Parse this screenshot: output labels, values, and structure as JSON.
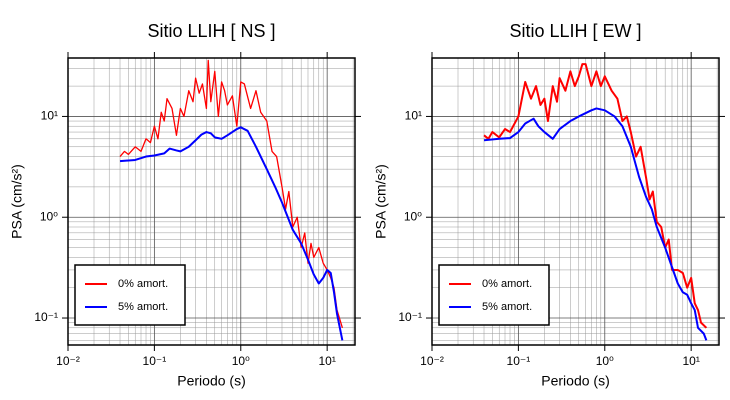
{
  "chart_data": [
    {
      "type": "line",
      "title": "Sitio LLIH [ NS ]",
      "xlabel": "Periodo (s)",
      "ylabel": "PSA (cm/s²)",
      "xlog": true,
      "ylog": true,
      "grid": true,
      "legend": "lower left",
      "xlim": [
        0.01,
        21
      ],
      "ylim": [
        0.054,
        38
      ],
      "xticks": [
        {
          "value": 0.01,
          "label": "10⁻²"
        },
        {
          "value": 0.1,
          "label": "10⁻¹"
        },
        {
          "value": 1,
          "label": "10⁰"
        },
        {
          "value": 10,
          "label": "10¹"
        }
      ],
      "yticks": [
        {
          "value": 0.1,
          "label": "10⁻¹"
        },
        {
          "value": 1,
          "label": "10⁰"
        },
        {
          "value": 10,
          "label": "10¹"
        }
      ],
      "series": [
        {
          "name": "0% amort.",
          "color": "#ff0000",
          "x": [
            0.04,
            0.045,
            0.05,
            0.06,
            0.07,
            0.08,
            0.09,
            0.1,
            0.11,
            0.12,
            0.13,
            0.14,
            0.16,
            0.18,
            0.2,
            0.22,
            0.25,
            0.28,
            0.3,
            0.33,
            0.36,
            0.4,
            0.42,
            0.45,
            0.5,
            0.55,
            0.6,
            0.65,
            0.7,
            0.8,
            0.9,
            1.0,
            1.1,
            1.3,
            1.5,
            1.7,
            2.0,
            2.3,
            2.6,
            3.0,
            3.3,
            3.6,
            4.0,
            4.5,
            5.0,
            5.5,
            6.0,
            6.5,
            7,
            8,
            9,
            10,
            11,
            12,
            13,
            15
          ],
          "values": [
            4.0,
            4.5,
            4.2,
            5.0,
            4.5,
            6.0,
            5.5,
            8.0,
            6.0,
            11,
            9,
            15,
            12,
            6.5,
            12,
            10,
            18,
            14,
            24,
            17,
            21,
            12,
            36,
            14,
            28,
            10,
            22,
            18,
            13,
            16,
            8,
            22,
            21,
            12,
            18,
            11,
            9,
            4.5,
            4.0,
            2.0,
            1.2,
            1.8,
            0.8,
            1.0,
            0.5,
            0.7,
            0.35,
            0.55,
            0.4,
            0.5,
            0.35,
            0.3,
            0.25,
            0.2,
            0.12,
            0.08
          ]
        },
        {
          "name": "5% amort.",
          "color": "#0000ff",
          "x": [
            0.04,
            0.06,
            0.08,
            0.1,
            0.13,
            0.15,
            0.18,
            0.2,
            0.25,
            0.3,
            0.35,
            0.4,
            0.45,
            0.5,
            0.6,
            0.7,
            0.9,
            1.0,
            1.2,
            1.5,
            2.0,
            2.5,
            3.0,
            4.0,
            5.0,
            6.0,
            7.0,
            8.0,
            9.0,
            10,
            11,
            12,
            13,
            15
          ],
          "values": [
            3.6,
            3.7,
            4.0,
            4.1,
            4.3,
            4.8,
            4.6,
            4.5,
            5.0,
            5.8,
            6.6,
            7.0,
            6.8,
            6.2,
            6.0,
            6.5,
            7.5,
            7.8,
            7.2,
            5.0,
            3.0,
            2.0,
            1.4,
            0.75,
            0.55,
            0.38,
            0.27,
            0.22,
            0.25,
            0.3,
            0.28,
            0.18,
            0.11,
            0.06
          ]
        }
      ]
    },
    {
      "type": "line",
      "title": "Sitio LLIH [ EW ]",
      "xlabel": "Periodo (s)",
      "ylabel": "PSA (cm/s²)",
      "xlog": true,
      "ylog": true,
      "grid": true,
      "legend": "lower left",
      "xlim": [
        0.01,
        21
      ],
      "ylim": [
        0.054,
        38
      ],
      "xticks": [
        {
          "value": 0.01,
          "label": "10⁻²"
        },
        {
          "value": 0.1,
          "label": "10⁻¹"
        },
        {
          "value": 1,
          "label": "10⁰"
        },
        {
          "value": 10,
          "label": "10¹"
        }
      ],
      "yticks": [
        {
          "value": 0.1,
          "label": "10⁻¹"
        },
        {
          "value": 1,
          "label": "10⁰"
        },
        {
          "value": 10,
          "label": "10¹"
        }
      ],
      "series": [
        {
          "name": "0% amort.",
          "color": "#ff0000",
          "x": [
            0.04,
            0.045,
            0.05,
            0.06,
            0.07,
            0.08,
            0.1,
            0.12,
            0.14,
            0.16,
            0.18,
            0.2,
            0.22,
            0.25,
            0.28,
            0.3,
            0.35,
            0.4,
            0.45,
            0.5,
            0.55,
            0.6,
            0.7,
            0.8,
            0.9,
            1.0,
            1.2,
            1.4,
            1.6,
            1.8,
            2.0,
            2.3,
            2.6,
            3.0,
            3.3,
            3.6,
            4.0,
            4.5,
            5,
            5.5,
            6,
            7,
            8,
            9,
            10,
            11,
            12,
            13,
            15
          ],
          "values": [
            6.5,
            6.0,
            7.0,
            6.2,
            7.5,
            7.0,
            10,
            22,
            15,
            20,
            13,
            15,
            9,
            20,
            14,
            24,
            18,
            28,
            20,
            25,
            33,
            33,
            20,
            28,
            20,
            25,
            18,
            15,
            9,
            10,
            7,
            4,
            5,
            2.5,
            1.5,
            1.8,
            0.9,
            0.8,
            0.5,
            0.6,
            0.3,
            0.3,
            0.28,
            0.2,
            0.25,
            0.14,
            0.12,
            0.09,
            0.08
          ]
        },
        {
          "name": "5% amort.",
          "color": "#0000ff",
          "x": [
            0.04,
            0.06,
            0.08,
            0.1,
            0.12,
            0.15,
            0.17,
            0.2,
            0.25,
            0.3,
            0.4,
            0.5,
            0.7,
            0.8,
            1.0,
            1.3,
            1.6,
            2.0,
            2.5,
            3.0,
            3.5,
            4.0,
            5.0,
            6.0,
            7.0,
            8,
            9,
            10,
            11,
            12,
            14,
            15
          ],
          "values": [
            5.8,
            6.0,
            6.1,
            7.0,
            8.5,
            9.5,
            8.0,
            7.0,
            6.0,
            7.5,
            9.0,
            10,
            11.5,
            12,
            11.5,
            10,
            8.0,
            5.0,
            2.5,
            1.6,
            1.2,
            0.8,
            0.5,
            0.32,
            0.22,
            0.18,
            0.17,
            0.14,
            0.12,
            0.08,
            0.07,
            0.06
          ]
        }
      ]
    }
  ]
}
